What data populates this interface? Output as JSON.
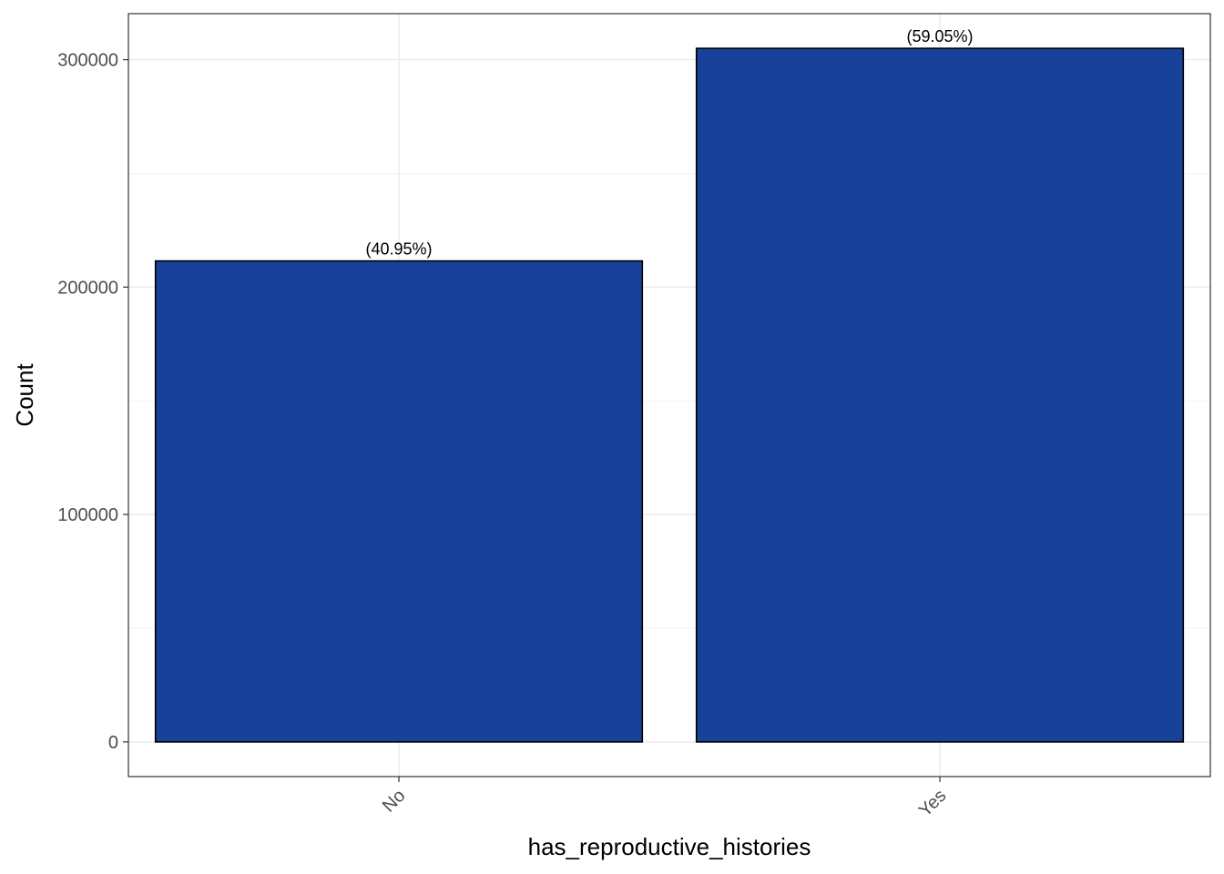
{
  "chart_data": {
    "type": "bar",
    "categories": [
      "No",
      "Yes"
    ],
    "values": [
      211500,
      305000
    ],
    "data_labels": [
      "(40.95%)",
      "(59.05%)"
    ],
    "xlabel": "has_reproductive_histories",
    "ylabel": "Count",
    "ylim": [
      -15250,
      320250
    ],
    "yticks": [
      0,
      100000,
      200000,
      300000
    ],
    "ytick_labels": [
      "0",
      "100000",
      "200000",
      "300000"
    ],
    "grid": true,
    "legend": "none",
    "colors": {
      "bar_fill": "#18429a",
      "bar_stroke": "#000000",
      "grid_major": "#ebebeb",
      "grid_minor": "#f3f3f3",
      "panel_border": "#333333"
    }
  }
}
